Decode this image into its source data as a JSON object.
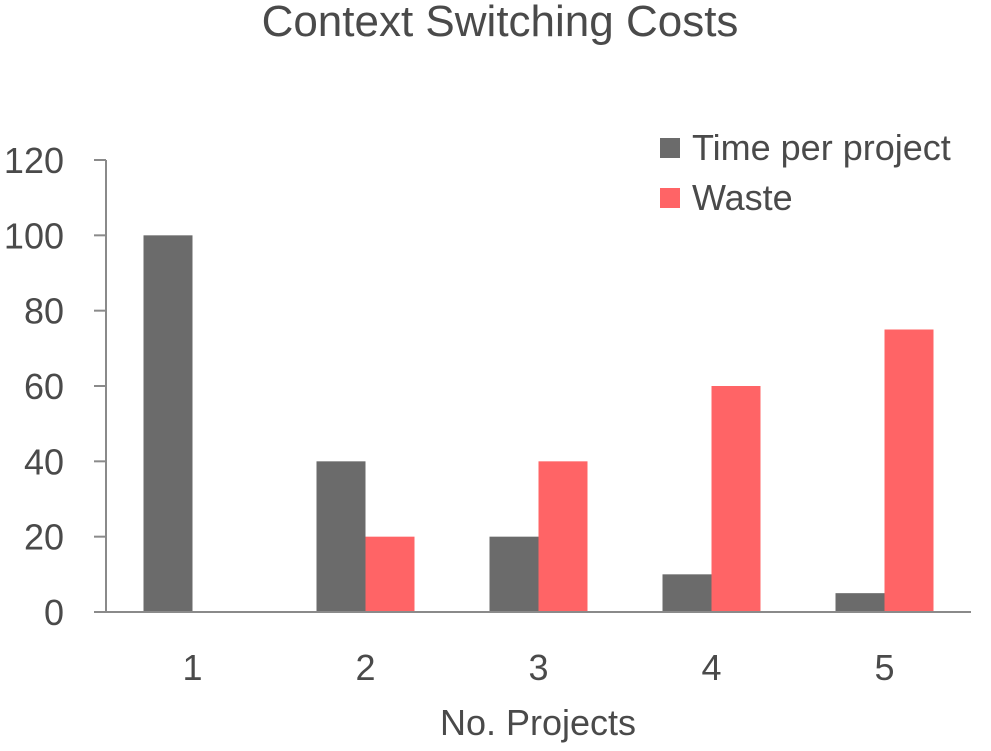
{
  "chart_data": {
    "type": "bar",
    "title": "Context Switching Costs",
    "xlabel": "No. Projects",
    "ylabel": "",
    "categories": [
      "1",
      "2",
      "3",
      "4",
      "5"
    ],
    "series": [
      {
        "name": "Time per project",
        "values": [
          100,
          40,
          20,
          10,
          5
        ],
        "color": "#6b6b6b"
      },
      {
        "name": "Waste",
        "values": [
          0,
          20,
          40,
          60,
          75
        ],
        "color": "#ff6466"
      }
    ],
    "ylim": [
      0,
      120
    ],
    "yticks": [
      "0",
      "20",
      "40",
      "60",
      "80",
      "100",
      "120"
    ],
    "grid": false,
    "legend_position": "top-right",
    "text_color": "#4a4a4a",
    "axis_color": "#8a8a8a"
  }
}
